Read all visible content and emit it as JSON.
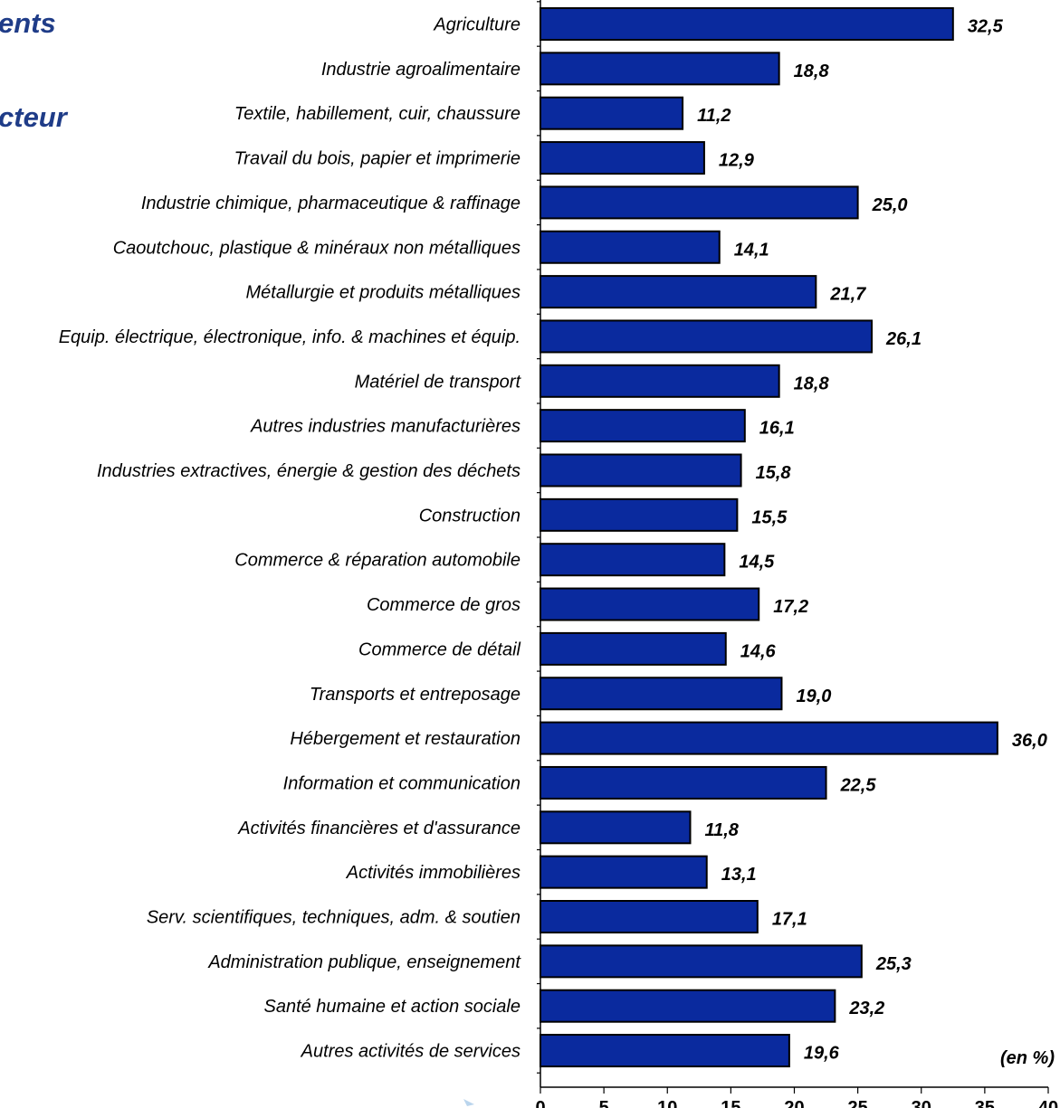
{
  "title": {
    "fragment_1": "ents",
    "fragment_2": "cteur"
  },
  "chart_data": {
    "type": "bar",
    "orientation": "horizontal",
    "categories": [
      "Agriculture",
      "Industrie agroalimentaire",
      "Textile, habillement, cuir, chaussure",
      "Travail du bois, papier et imprimerie",
      "Industrie chimique, pharmaceutique & raffinage",
      "Caoutchouc, plastique & minéraux non métalliques",
      "Métallurgie et produits métalliques",
      "Equip. électrique, électronique, info. & machines et équip.",
      "Matériel de transport",
      "Autres industries manufacturières",
      "Industries extractives, énergie & gestion des déchets",
      "Construction",
      "Commerce & réparation automobile",
      "Commerce de gros",
      "Commerce de détail",
      "Transports et entreposage",
      "Hébergement et restauration",
      "Information et communication",
      "Activités financières et d'assurance",
      "Activités immobilières",
      "Serv. scientifiques, techniques, adm. & soutien",
      "Administration publique, enseignement",
      "Santé humaine et action sociale",
      "Autres activités de services"
    ],
    "values": [
      32.5,
      18.8,
      11.2,
      12.9,
      25.0,
      14.1,
      21.7,
      26.1,
      18.8,
      16.1,
      15.8,
      15.5,
      14.5,
      17.2,
      14.6,
      19.0,
      36.0,
      22.5,
      11.8,
      13.1,
      17.1,
      25.3,
      23.2,
      19.6
    ],
    "value_labels": [
      "32,5",
      "18,8",
      "11,2",
      "12,9",
      "25,0",
      "14,1",
      "21,7",
      "26,1",
      "18,8",
      "16,1",
      "15,8",
      "15,5",
      "14,5",
      "17,2",
      "14,6",
      "19,0",
      "36,0",
      "22,5",
      "11,8",
      "13,1",
      "17,1",
      "25,3",
      "23,2",
      "19,6"
    ],
    "xlim": [
      0,
      40
    ],
    "xticks": [
      0,
      5,
      10,
      15,
      20,
      25,
      30,
      35,
      40
    ],
    "unit_label": "(en %)",
    "grid": false,
    "bar_color": "#0a2a9e",
    "bar_edge_color": "#000000"
  }
}
